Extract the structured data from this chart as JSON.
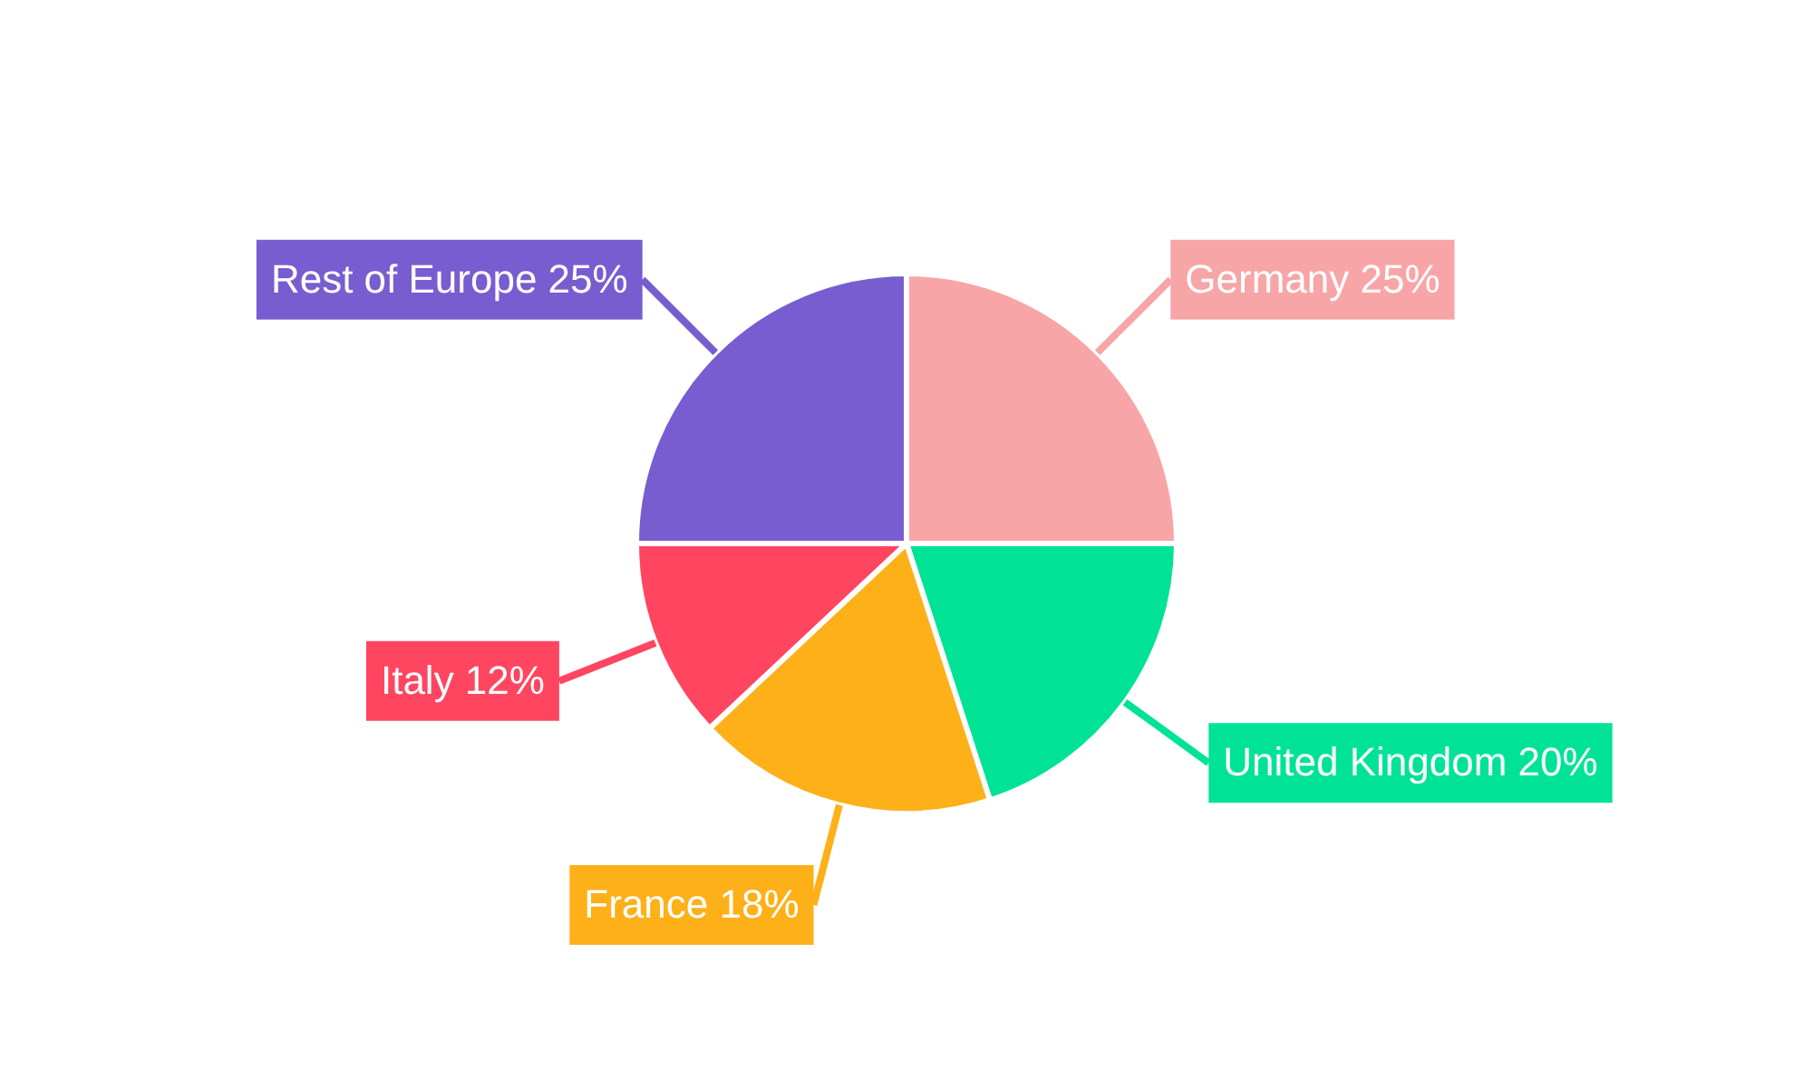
{
  "chart_data": {
    "type": "pie",
    "categories": [
      "Germany",
      "United Kingdom",
      "France",
      "Italy",
      "Rest of Europe"
    ],
    "values": [
      25,
      20,
      18,
      12,
      25
    ],
    "value_labels": [
      "25%",
      "20%",
      "18%",
      "12%",
      "25%"
    ],
    "colors": [
      "#f8a5a8",
      "#00e396",
      "#feb019",
      "#ff4560",
      "#775dd0"
    ],
    "legend": false
  }
}
